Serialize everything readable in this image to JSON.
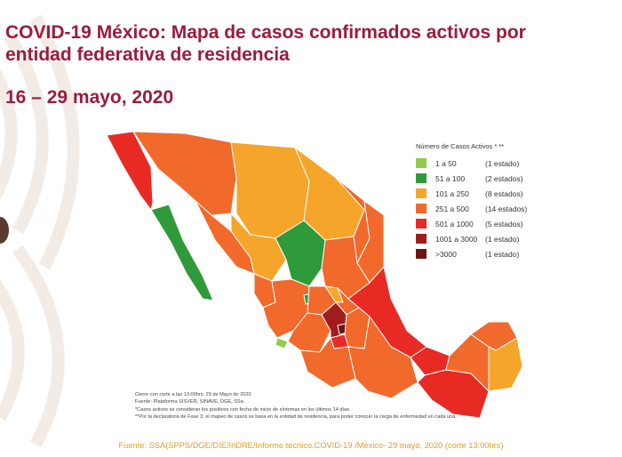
{
  "title_lines": [
    "COVID-19 México: Mapa de casos confirmados activos por",
    "entidad federativa de residencia"
  ],
  "date_range": "16 – 29 mayo, 2020",
  "legend": {
    "title": "Número de Casos Activos * **",
    "items": [
      {
        "range": "1 a 50",
        "count": "(1 estado)",
        "color": "#8fcc4c"
      },
      {
        "range": "51 a 100",
        "count": "(2 estados)",
        "color": "#2e9a3a"
      },
      {
        "range": "101 a 250",
        "count": "(8 estados)",
        "color": "#f6a52b"
      },
      {
        "range": "251 a 500",
        "count": "(14 estados)",
        "color": "#f2692c"
      },
      {
        "range": "501 a 1000",
        "count": "(5 estados)",
        "color": "#e82a25"
      },
      {
        "range": "1001 a 3000",
        "count": "(1 estado)",
        "color": "#a11d1d"
      },
      {
        "range": ">3000",
        "count": "(1 estado)",
        "color": "#6b1416"
      }
    ]
  },
  "notes": [
    "Cierre con corte a las 13:00hrs, 29 de Mayo de 2020",
    "Fuente: Plataforma SISVER, SINAVE, DGE, SSa.",
    "*Casos activos se consideran los positivos con fecha de inicio de síntomas en los últimos 14 días.",
    "**Por la declaratoria de Fase 3, el mapeo de casos se basa en la entidad de residencia, para poder conocer la carga de enfermedad en cada una."
  ],
  "source": "Fuente: SSA(SPPS/DGE/DIE/InDRE/Informe técnico.COVID-19 /México- 29 mayo, 2020 (corte 13:00hrs)"
}
